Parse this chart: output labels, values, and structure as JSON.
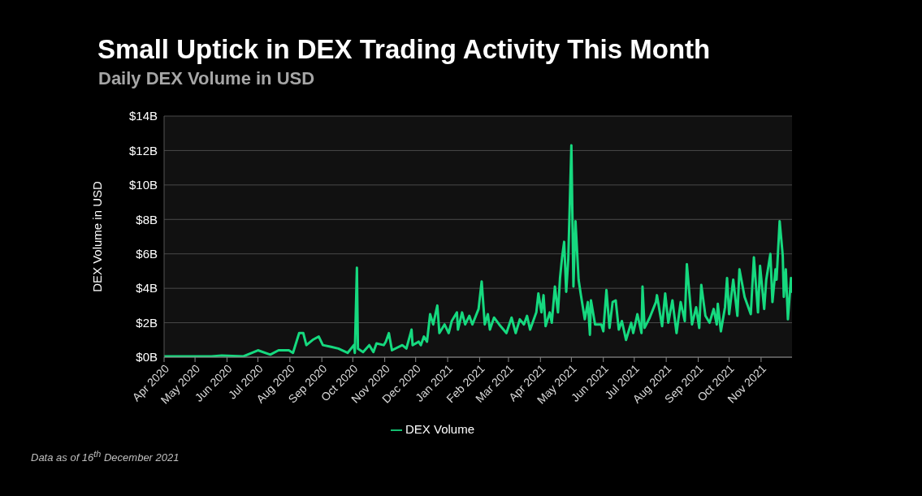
{
  "chart_data": {
    "type": "line",
    "title": "Small Uptick in DEX Trading Activity This Month",
    "subtitle": "Daily DEX Volume in USD",
    "ylabel": "DEX Volume in USD",
    "annotations": [
      "Data as of 16$^{th}$ December 2021"
    ],
    "xlim": [
      "2020-04-01",
      "2021-12-01"
    ],
    "xticks": [
      {
        "value": "2020-04-01",
        "label": "Apr 2020"
      },
      {
        "value": "2020-05-01",
        "label": "May 2020"
      },
      {
        "value": "2020-06-01",
        "label": "Jun 2020"
      },
      {
        "value": "2020-07-01",
        "label": "Jul 2020"
      },
      {
        "value": "2020-08-01",
        "label": "Aug 2020"
      },
      {
        "value": "2020-09-01",
        "label": "Sep 2020"
      },
      {
        "value": "2020-10-01",
        "label": "Oct 2020"
      },
      {
        "value": "2020-11-01",
        "label": "Nov 2020"
      },
      {
        "value": "2020-12-01",
        "label": "Dec 2020"
      },
      {
        "value": "2021-01-01",
        "label": "Jan 2021"
      },
      {
        "value": "2021-02-01",
        "label": "Feb 2021"
      },
      {
        "value": "2021-03-01",
        "label": "Mar 2021"
      },
      {
        "value": "2021-04-01",
        "label": "Apr 2021"
      },
      {
        "value": "2021-05-01",
        "label": "May 2021"
      },
      {
        "value": "2021-06-01",
        "label": "Jun 2021"
      },
      {
        "value": "2021-07-01",
        "label": "Jul 2021"
      },
      {
        "value": "2021-08-01",
        "label": "Aug 2021"
      },
      {
        "value": "2021-09-01",
        "label": "Sep 2021"
      },
      {
        "value": "2021-10-01",
        "label": "Oct 2021"
      },
      {
        "value": "2021-11-01",
        "label": "Nov 2021"
      }
    ],
    "ylim": [
      0,
      14
    ],
    "yticks": [
      {
        "value": 0,
        "label": "$0B"
      },
      {
        "value": 2,
        "label": "$2B"
      },
      {
        "value": 4,
        "label": "$4B"
      },
      {
        "value": 6,
        "label": "$6B"
      },
      {
        "value": 8,
        "label": "$8B"
      },
      {
        "value": 10,
        "label": "$10B"
      },
      {
        "value": 12,
        "label": "$12B"
      },
      {
        "value": 14,
        "label": "$14B"
      }
    ],
    "grid": "y",
    "legend": "bottom",
    "marker": "none",
    "line_style": "solid",
    "x": [
      "2020-04-01",
      "2020-05-17",
      "2020-05-27",
      "2020-06-17",
      "2020-07-01",
      "2020-07-13",
      "2020-07-21",
      "2020-07-31",
      "2020-08-04",
      "2020-08-10",
      "2020-08-14",
      "2020-08-17",
      "2020-08-23",
      "2020-08-29",
      "2020-09-02",
      "2020-09-10",
      "2020-09-17",
      "2020-09-26",
      "2020-10-02",
      "2020-10-03",
      "2020-10-05",
      "2020-10-06",
      "2020-10-11",
      "2020-10-17",
      "2020-10-21",
      "2020-10-24",
      "2020-10-31",
      "2020-11-02",
      "2020-11-05",
      "2020-11-08",
      "2020-11-18",
      "2020-11-22",
      "2020-11-27",
      "2020-11-28",
      "2020-12-04",
      "2020-12-06",
      "2020-12-09",
      "2020-12-12",
      "2020-12-15",
      "2020-12-18",
      "2020-12-22",
      "2020-12-24",
      "2020-12-29",
      "2021-01-02",
      "2021-01-05",
      "2021-01-10",
      "2021-01-11",
      "2021-01-15",
      "2021-01-18",
      "2021-01-22",
      "2021-01-25",
      "2021-01-31",
      "2021-02-03",
      "2021-02-06",
      "2021-02-09",
      "2021-02-11",
      "2021-02-15",
      "2021-02-20",
      "2021-02-27",
      "2021-03-04",
      "2021-03-08",
      "2021-03-12",
      "2021-03-16",
      "2021-03-19",
      "2021-03-22",
      "2021-03-28",
      "2021-03-30",
      "2021-04-02",
      "2021-04-04",
      "2021-04-06",
      "2021-04-10",
      "2021-04-12",
      "2021-04-15",
      "2021-04-18",
      "2021-04-20",
      "2021-04-22",
      "2021-04-24",
      "2021-04-26",
      "2021-04-28",
      "2021-05-01",
      "2021-05-03",
      "2021-05-05",
      "2021-05-08",
      "2021-05-10",
      "2021-05-14",
      "2021-05-17",
      "2021-05-19",
      "2021-05-20",
      "2021-05-24",
      "2021-05-30",
      "2021-06-01",
      "2021-06-04",
      "2021-06-07",
      "2021-06-10",
      "2021-06-13",
      "2021-06-16",
      "2021-06-19",
      "2021-06-23",
      "2021-06-28",
      "2021-06-30",
      "2021-07-04",
      "2021-07-08",
      "2021-07-09",
      "2021-07-11",
      "2021-07-16",
      "2021-07-22",
      "2021-07-23",
      "2021-07-28",
      "2021-07-31",
      "2021-08-03",
      "2021-08-07",
      "2021-08-11",
      "2021-08-15",
      "2021-08-19",
      "2021-08-21",
      "2021-08-26",
      "2021-08-30",
      "2021-09-02",
      "2021-09-04",
      "2021-09-08",
      "2021-09-12",
      "2021-09-16",
      "2021-09-19",
      "2021-09-20",
      "2021-09-23",
      "2021-09-27",
      "2021-09-29",
      "2021-10-01",
      "2021-10-05",
      "2021-10-09",
      "2021-10-11",
      "2021-10-16",
      "2021-10-22",
      "2021-10-25",
      "2021-10-29",
      "2021-10-31",
      "2021-11-04",
      "2021-11-06",
      "2021-11-10",
      "2021-11-12",
      "2021-11-15",
      "2021-11-16",
      "2021-11-19",
      "2021-11-22",
      "2021-11-23",
      "2021-11-25",
      "2021-11-27",
      "2021-11-30",
      "2021-12-01"
    ],
    "series": [
      {
        "name": "DEX Volume",
        "color": "#16d97f",
        "values": [
          0.05,
          0.05,
          0.1,
          0.05,
          0.4,
          0.15,
          0.4,
          0.4,
          0.25,
          1.4,
          1.4,
          0.7,
          1.0,
          1.2,
          0.7,
          0.6,
          0.5,
          0.25,
          0.7,
          0.25,
          5.2,
          0.5,
          0.3,
          0.7,
          0.3,
          0.8,
          0.7,
          0.9,
          1.4,
          0.4,
          0.7,
          0.5,
          1.6,
          0.7,
          0.9,
          0.7,
          1.2,
          0.9,
          2.5,
          1.9,
          3.0,
          1.4,
          1.9,
          1.4,
          2.1,
          2.6,
          1.6,
          2.6,
          1.9,
          2.4,
          1.9,
          2.8,
          4.4,
          1.9,
          2.5,
          1.6,
          2.3,
          1.9,
          1.4,
          2.3,
          1.4,
          2.2,
          1.9,
          2.4,
          1.6,
          2.6,
          3.7,
          2.6,
          3.6,
          1.8,
          2.6,
          2.0,
          4.1,
          2.6,
          4.6,
          5.8,
          6.7,
          3.8,
          5.7,
          12.3,
          4.1,
          7.9,
          4.5,
          3.7,
          2.2,
          3.2,
          1.3,
          3.3,
          1.9,
          1.9,
          1.5,
          3.9,
          1.7,
          3.2,
          3.3,
          1.6,
          2.1,
          1.0,
          2.0,
          1.4,
          2.5,
          1.4,
          4.1,
          1.7,
          2.3,
          3.2,
          3.6,
          1.8,
          3.7,
          2.0,
          3.3,
          1.4,
          3.2,
          2.1,
          5.4,
          1.9,
          2.9,
          1.7,
          4.2,
          2.4,
          2.0,
          2.8,
          1.9,
          3.1,
          1.5,
          2.9,
          4.6,
          2.5,
          4.5,
          2.4,
          5.1,
          3.5,
          2.5,
          5.8,
          2.6,
          5.3,
          2.8,
          4.5,
          6.0,
          3.2,
          5.1,
          4.5,
          7.9,
          5.9,
          3.5,
          5.1,
          2.2,
          4.6,
          3.8
        ]
      }
    ]
  }
}
